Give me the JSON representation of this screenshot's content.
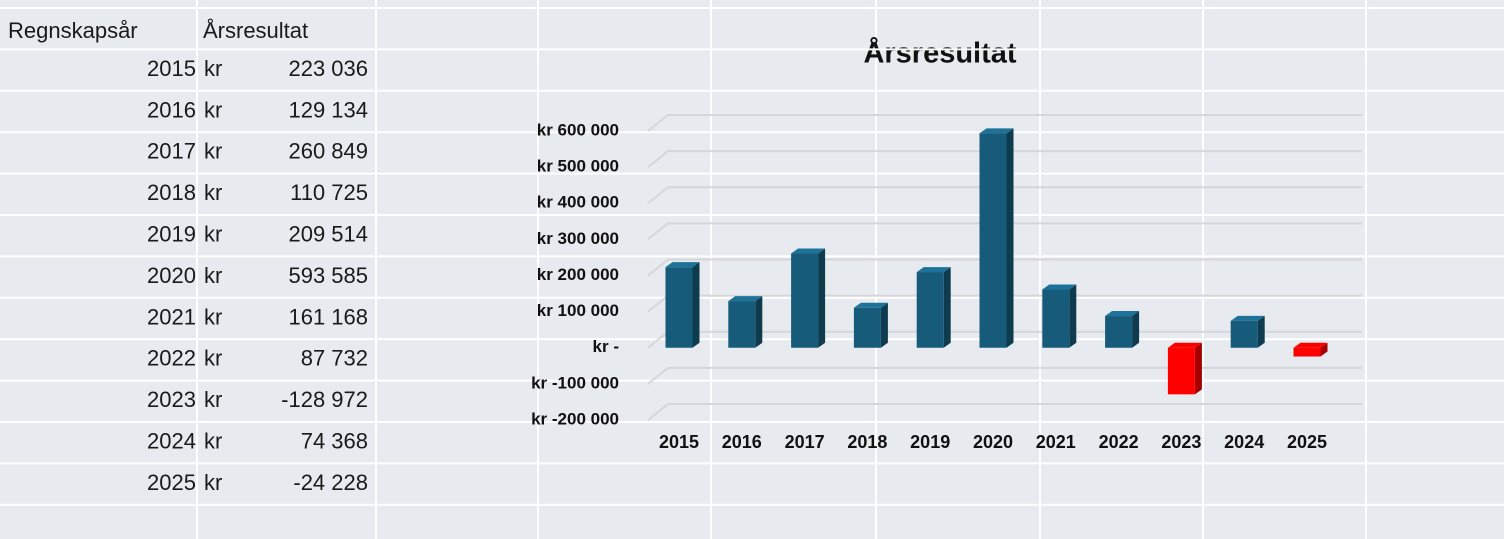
{
  "table": {
    "headers": [
      "Regnskapsår",
      "Årsresultat"
    ],
    "rows": [
      [
        "2015",
        "kr",
        "223 036"
      ],
      [
        "2016",
        "kr",
        "129 134"
      ],
      [
        "2017",
        "kr",
        "260 849"
      ],
      [
        "2018",
        "kr",
        "110 725"
      ],
      [
        "2019",
        "kr",
        "209 514"
      ],
      [
        "2020",
        "kr",
        "593 585"
      ],
      [
        "2021",
        "kr",
        "161 168"
      ],
      [
        "2022",
        "kr",
        "87 732"
      ],
      [
        "2023",
        "kr",
        "-128 972"
      ],
      [
        "2024",
        "kr",
        "74 368"
      ],
      [
        "2025",
        "kr",
        "-24 228"
      ]
    ]
  },
  "chart_data": {
    "type": "bar",
    "title": "Årsresultat",
    "categories": [
      "2015",
      "2016",
      "2017",
      "2018",
      "2019",
      "2020",
      "2021",
      "2022",
      "2023",
      "2024",
      "2025"
    ],
    "values": [
      223036,
      129134,
      260849,
      110725,
      209514,
      593585,
      161168,
      87732,
      -128972,
      74368,
      -24228
    ],
    "color": "#175b7a",
    "negative_color": "#ff0000",
    "ylim": [
      -200000,
      600000
    ],
    "yticks": [
      {
        "value": -200000,
        "label": "kr -200 000"
      },
      {
        "value": -100000,
        "label": "kr -100 000"
      },
      {
        "value": 0,
        "label": "kr -"
      },
      {
        "value": 100000,
        "label": "kr 100 000"
      },
      {
        "value": 200000,
        "label": "kr 200 000"
      },
      {
        "value": 300000,
        "label": "kr 300 000"
      },
      {
        "value": 400000,
        "label": "kr 400 000"
      },
      {
        "value": 500000,
        "label": "kr 500 000"
      },
      {
        "value": 600000,
        "label": "kr 600 000"
      }
    ],
    "grid": true
  }
}
